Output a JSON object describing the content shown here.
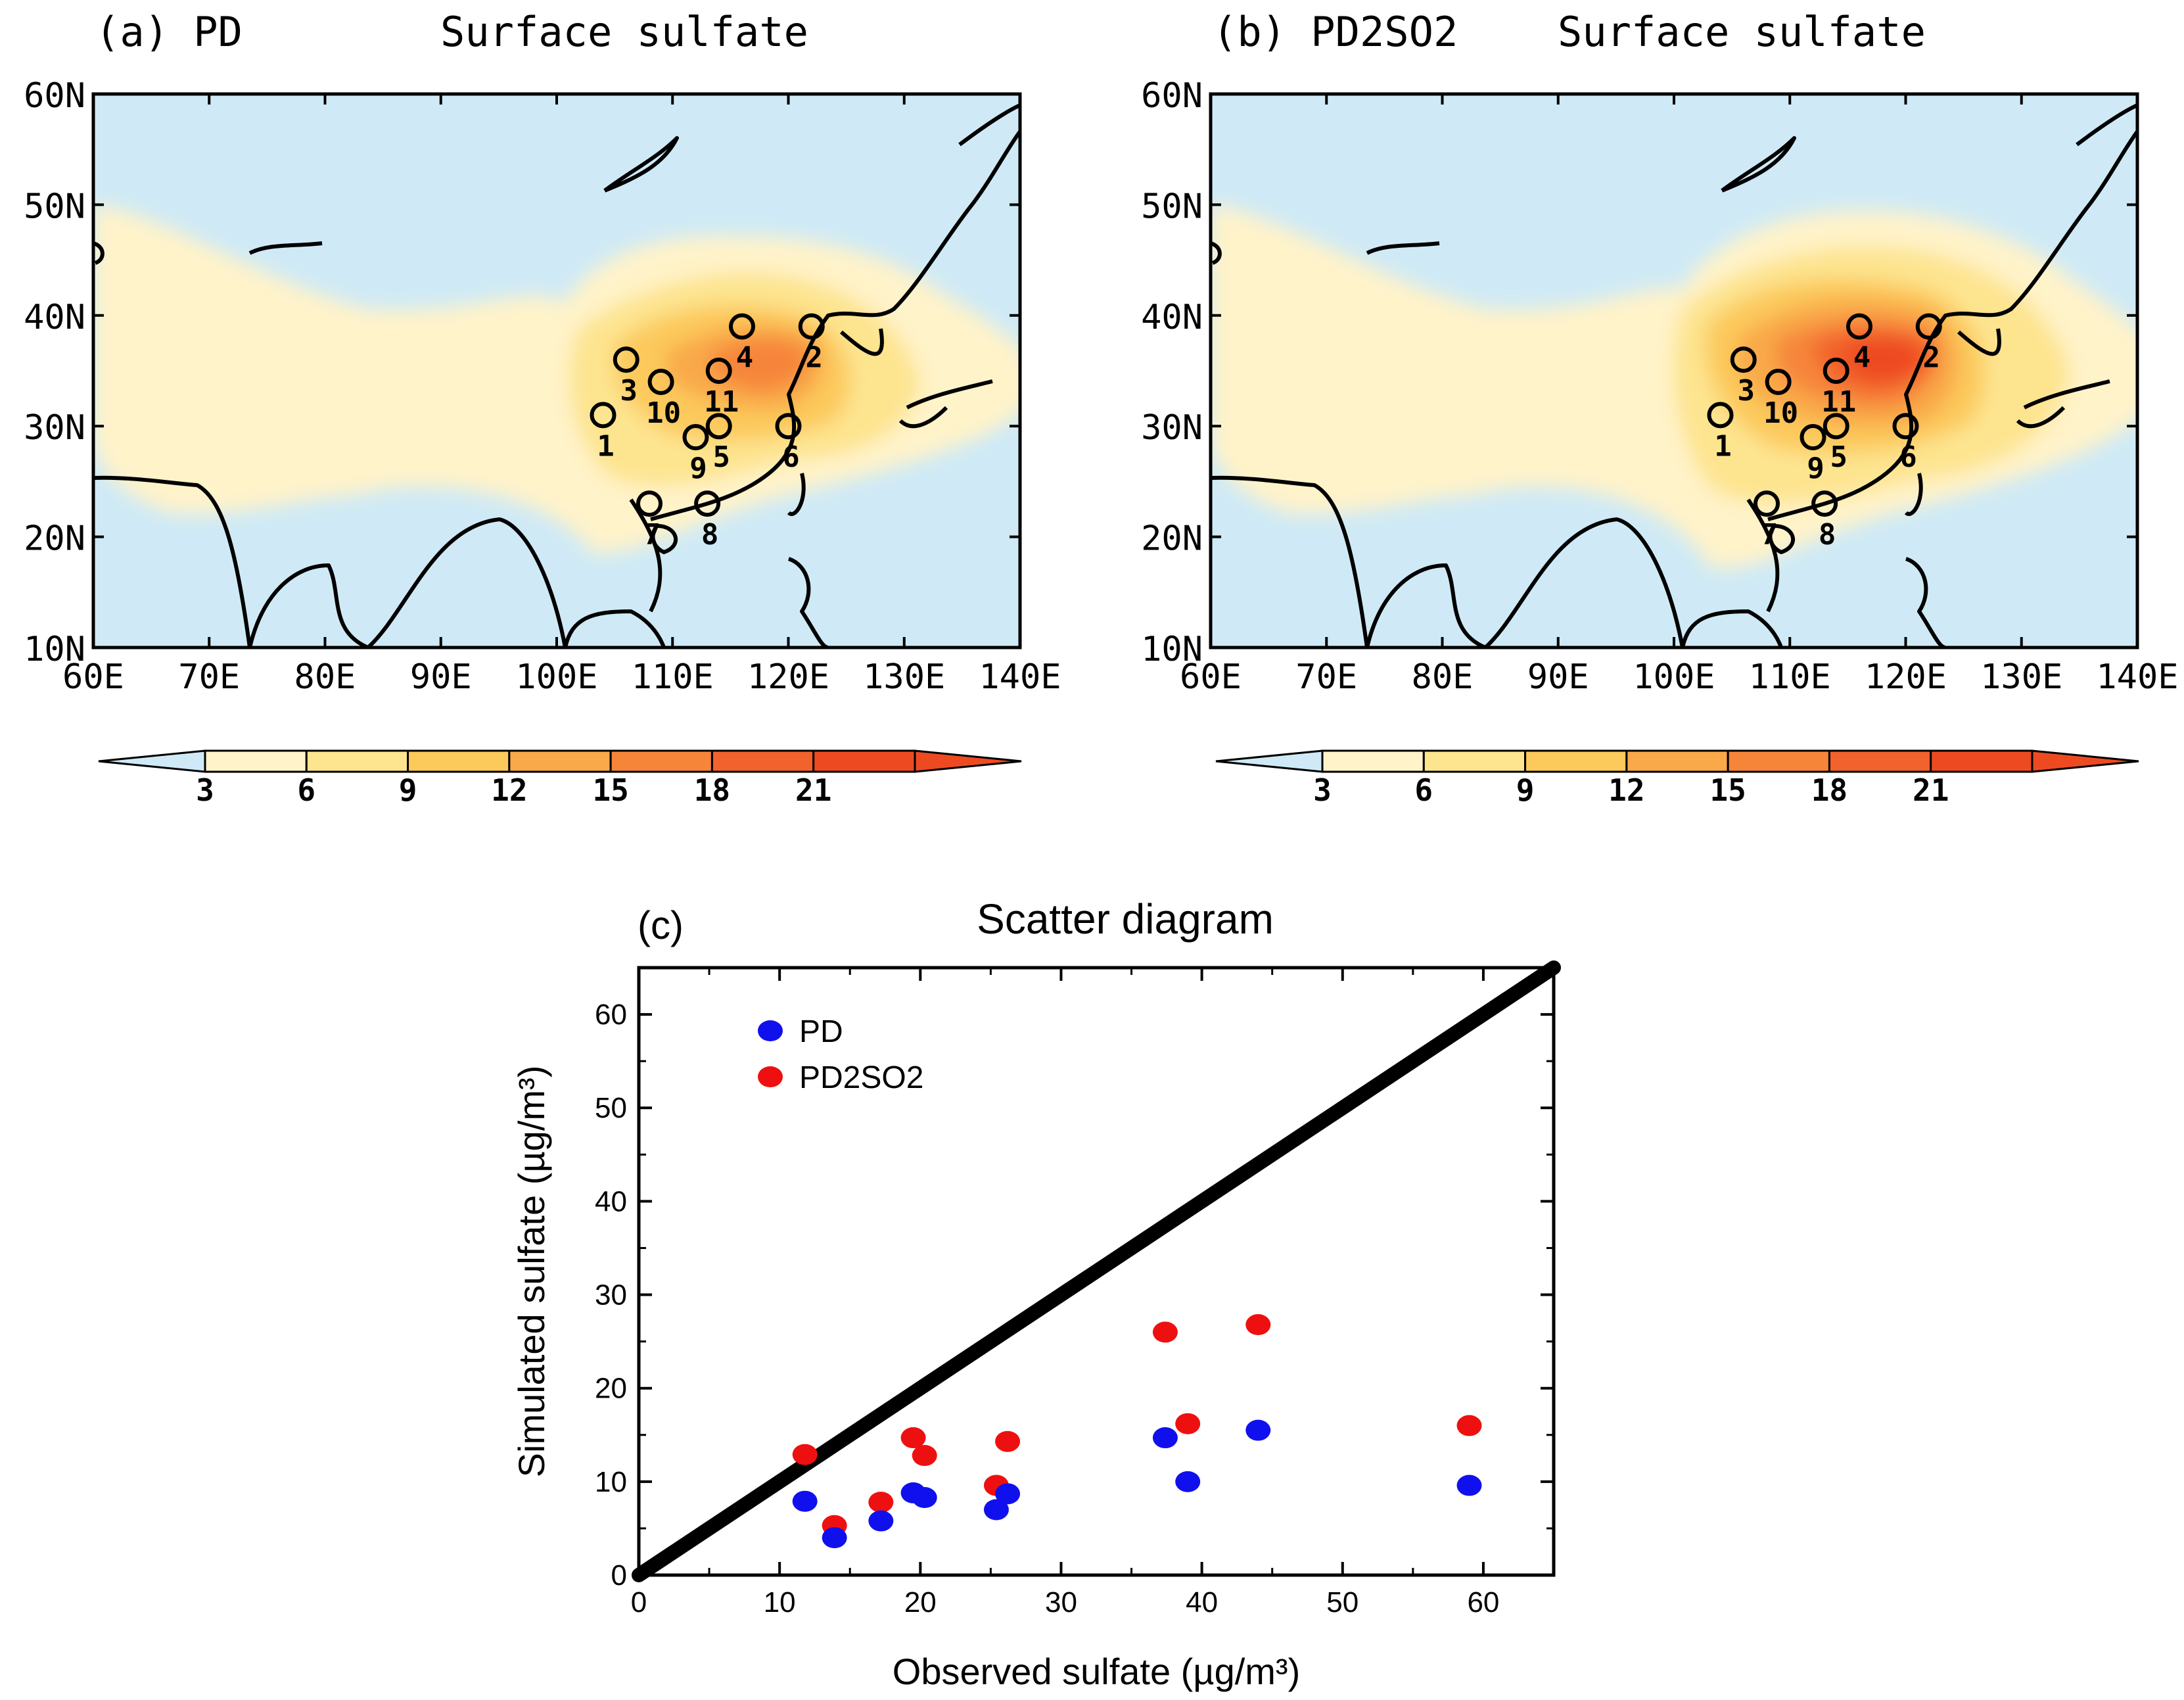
{
  "colors": {
    "ocean": "#cfeaf6",
    "levels": [
      "#cfeaf6",
      "#fff3c9",
      "#fde48f",
      "#fcc95b",
      "#f9a94a",
      "#f6853a",
      "#f2622c",
      "#ee4a22"
    ],
    "pd_color": "#1010ee",
    "pd2so2_color": "#ee1010",
    "line": "#000000"
  },
  "maps": [
    {
      "id": "a",
      "panel_label": "(a) PD",
      "title": "Surface sulfate",
      "lat_ticks": [
        "60N",
        "50N",
        "40N",
        "30N",
        "20N",
        "10N"
      ],
      "lon_ticks": [
        "60E",
        "70E",
        "80E",
        "90E",
        "100E",
        "110E",
        "120E",
        "130E",
        "140E"
      ],
      "stations": [
        {
          "id": "1",
          "lon": 104,
          "lat": 31
        },
        {
          "id": "2",
          "lon": 122,
          "lat": 39
        },
        {
          "id": "3",
          "lon": 106,
          "lat": 36
        },
        {
          "id": "4",
          "lon": 116,
          "lat": 39
        },
        {
          "id": "5",
          "lon": 114,
          "lat": 30
        },
        {
          "id": "6",
          "lon": 120,
          "lat": 30
        },
        {
          "id": "7",
          "lon": 108,
          "lat": 23
        },
        {
          "id": "8",
          "lon": 113,
          "lat": 23
        },
        {
          "id": "9",
          "lon": 112,
          "lat": 29
        },
        {
          "id": "10",
          "lon": 109,
          "lat": 34
        },
        {
          "id": "11",
          "lon": 114,
          "lat": 35
        }
      ],
      "colorbar": {
        "ticks": [
          "3",
          "6",
          "9",
          "12",
          "15",
          "18",
          "21"
        ]
      }
    },
    {
      "id": "b",
      "panel_label": "(b) PD2SO2",
      "title": "Surface sulfate",
      "lat_ticks": [
        "60N",
        "50N",
        "40N",
        "30N",
        "20N",
        "10N"
      ],
      "lon_ticks": [
        "60E",
        "70E",
        "80E",
        "90E",
        "100E",
        "110E",
        "120E",
        "130E",
        "140E"
      ],
      "stations": [
        {
          "id": "1",
          "lon": 104,
          "lat": 31
        },
        {
          "id": "2",
          "lon": 122,
          "lat": 39
        },
        {
          "id": "3",
          "lon": 106,
          "lat": 36
        },
        {
          "id": "4",
          "lon": 116,
          "lat": 39
        },
        {
          "id": "5",
          "lon": 114,
          "lat": 30
        },
        {
          "id": "6",
          "lon": 120,
          "lat": 30
        },
        {
          "id": "7",
          "lon": 108,
          "lat": 23
        },
        {
          "id": "8",
          "lon": 113,
          "lat": 23
        },
        {
          "id": "9",
          "lon": 112,
          "lat": 29
        },
        {
          "id": "10",
          "lon": 109,
          "lat": 34
        },
        {
          "id": "11",
          "lon": 114,
          "lat": 35
        }
      ],
      "colorbar": {
        "ticks": [
          "3",
          "6",
          "9",
          "12",
          "15",
          "18",
          "21"
        ]
      }
    }
  ],
  "chart_data": {
    "type": "scatter",
    "panel_label": "(c)",
    "title": "Scatter diagram",
    "xlabel": "Observed sulfate (µg/m³)",
    "ylabel": "Simulated sulfate (µg/m³)",
    "xlim": [
      0,
      65
    ],
    "ylim": [
      0,
      65
    ],
    "xticks": [
      0,
      10,
      20,
      30,
      40,
      50,
      60
    ],
    "yticks": [
      0,
      10,
      20,
      30,
      40,
      50,
      60
    ],
    "legend": "top-left",
    "reference_line": {
      "x": [
        0,
        65
      ],
      "y": [
        0,
        65
      ]
    },
    "series": [
      {
        "name": "PD",
        "points": [
          [
            11.8,
            7.9
          ],
          [
            13.9,
            4.0
          ],
          [
            17.2,
            5.8
          ],
          [
            19.5,
            8.8
          ],
          [
            20.3,
            8.3
          ],
          [
            25.4,
            7.0
          ],
          [
            26.2,
            8.7
          ],
          [
            37.4,
            14.7
          ],
          [
            39.0,
            10.0
          ],
          [
            44.0,
            15.5
          ],
          [
            59.0,
            9.6
          ]
        ]
      },
      {
        "name": "PD2SO2",
        "points": [
          [
            11.8,
            12.9
          ],
          [
            13.9,
            5.3
          ],
          [
            17.2,
            7.8
          ],
          [
            19.5,
            14.7
          ],
          [
            20.3,
            12.8
          ],
          [
            25.4,
            9.6
          ],
          [
            26.2,
            14.3
          ],
          [
            37.4,
            26.0
          ],
          [
            39.0,
            16.2
          ],
          [
            44.0,
            26.8
          ],
          [
            59.0,
            16.0
          ]
        ]
      }
    ]
  }
}
